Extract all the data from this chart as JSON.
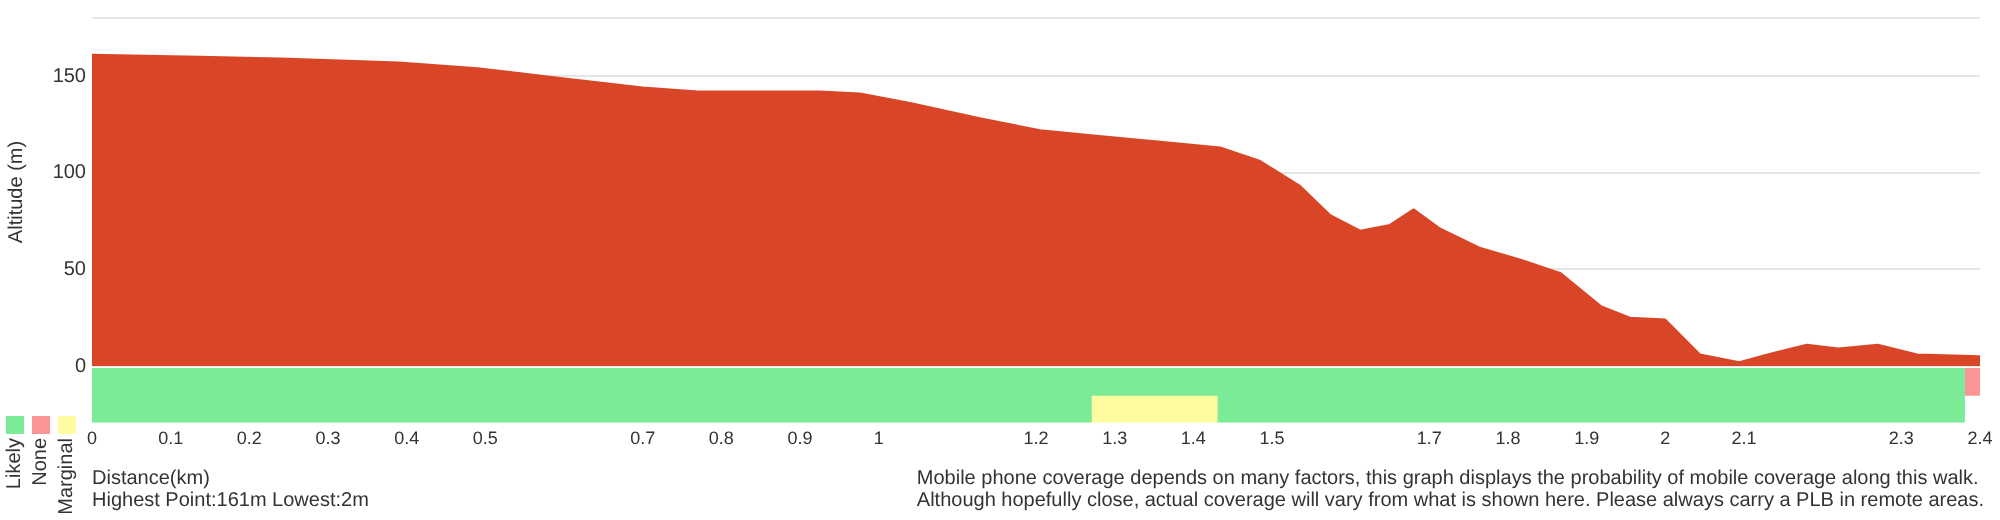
{
  "chart_data": [
    {
      "type": "area",
      "ylabel": "Altitude (m)",
      "x": [
        0,
        0.137,
        0.24,
        0.39,
        0.49,
        0.595,
        0.7,
        0.77,
        0.925,
        0.976,
        1.04,
        1.13,
        1.205,
        1.28,
        1.358,
        1.434,
        1.485,
        1.536,
        1.574,
        1.612,
        1.65,
        1.68,
        1.714,
        1.765,
        1.816,
        1.867,
        1.918,
        1.955,
        2.0,
        2.044,
        2.094,
        2.13,
        2.18,
        2.22,
        2.27,
        2.32,
        2.4
      ],
      "values": [
        161,
        160,
        159,
        157,
        154,
        149,
        144,
        142,
        142,
        141,
        136,
        128,
        122,
        119,
        116,
        113,
        106,
        93,
        78,
        70,
        73,
        81,
        71,
        61,
        55,
        48,
        31,
        25,
        24,
        6,
        2,
        6,
        11,
        9,
        11,
        6,
        5
      ],
      "color": "#d94627",
      "xlim": [
        0,
        2.4
      ],
      "ylim": [
        0,
        180
      ],
      "yticks": [
        0,
        50,
        100,
        150,
        {
          "value": 180,
          "label": null
        }
      ],
      "grid": "y",
      "tick_labels": "y"
    },
    {
      "type": "bar",
      "orientation": "horizontal",
      "stacked": true,
      "xlabel": "Distance(km)",
      "categories": [
        null,
        null
      ],
      "legend": "bottom left",
      "series": [
        {
          "name": "Likely",
          "color": "#7ceb98",
          "values": [
            2.38,
            1.27
          ]
        },
        {
          "name": "None",
          "color": "#fb9494",
          "values": [
            0.02,
            null
          ]
        },
        {
          "name": "Marginal",
          "color": "#fffba0",
          "values": [
            null,
            0.16
          ]
        },
        {
          "color": "#7ceb98",
          "values": [
            null,
            0.95
          ]
        }
      ],
      "xlim": [
        0,
        2.4
      ],
      "xticks": [
        0,
        0.1,
        0.2,
        0.3,
        0.4,
        0.5,
        0.7,
        0.8,
        0.9,
        1,
        1.2,
        1.3,
        1.4,
        1.5,
        1.7,
        1.8,
        1.9,
        2,
        2.1,
        2.3,
        2.4
      ],
      "tick_labels": "x",
      "annotations": [
        "Highest Point:161m Lowest:2m",
        "Mobile phone coverage depends on many factors, this graph displays the probability of mobile coverage along this walk.",
        "Although hopefully close, actual coverage will vary from what is shown here. Please always carry a PLB in remote areas."
      ]
    }
  ]
}
